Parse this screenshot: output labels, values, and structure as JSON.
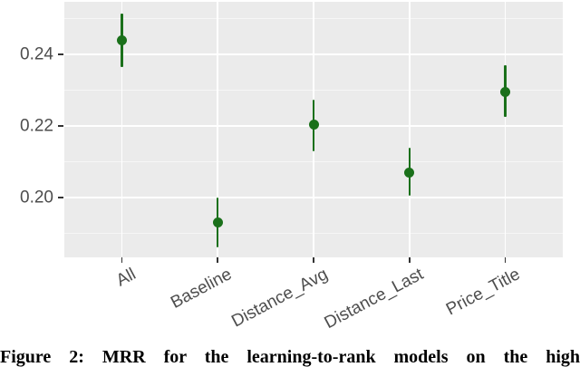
{
  "figure": {
    "caption": "Figure 2: MRR for the learning-to-rank models on the high"
  },
  "chart_data": {
    "type": "scatter",
    "subtype": "pointrange",
    "title": "",
    "xlabel": "",
    "ylabel": "",
    "categories": [
      "All",
      "Baseline",
      "Distance_Avg",
      "Distance_Last",
      "Price_Title"
    ],
    "series": [
      {
        "name": "MRR",
        "values": [
          0.244,
          0.193,
          0.2205,
          0.207,
          0.2295
        ],
        "ci_low": [
          0.2365,
          0.186,
          0.213,
          0.2005,
          0.2225
        ],
        "ci_high": [
          0.2515,
          0.2,
          0.2275,
          0.214,
          0.237
        ]
      }
    ],
    "yticks_major": [
      0.2,
      0.22,
      0.24
    ],
    "ytick_labels": [
      "0.20",
      "0.22",
      "0.24"
    ],
    "yticks_minor": [
      0.19,
      0.21,
      0.23,
      0.25
    ],
    "ylim": [
      0.1832,
      0.2548
    ],
    "grid": "major-and-minor",
    "legend_position": "none",
    "x_label_angle_deg": -28,
    "colors": {
      "point": "#1A701A",
      "panel_background": "#EBEBEB",
      "gridline": "#FFFFFF",
      "axis_text": "#4D4D4D",
      "tick_mark": "#333333"
    }
  }
}
